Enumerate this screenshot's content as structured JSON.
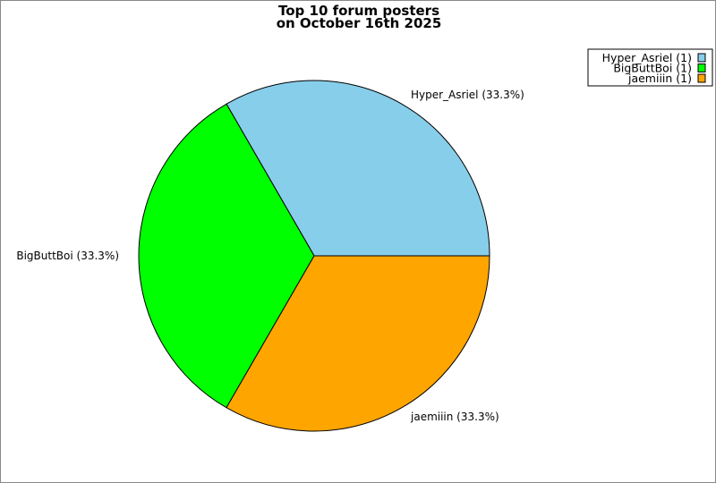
{
  "chart_data": {
    "type": "pie",
    "title": [
      "Top 10 forum posters",
      "on October 16th 2025"
    ],
    "categories": [
      "Hyper_Asriel",
      "BigButtBoi",
      "jaemiiin"
    ],
    "values": [
      1,
      1,
      1
    ],
    "percent_labels": [
      "Hyper_Asriel (33.3%)",
      "BigButtBoi (33.3%)",
      "jaemiiin (33.3%)"
    ],
    "legend_entries": [
      "Hyper_Asriel (1)",
      "BigButtBoi (1)",
      "jaemiiin (1)"
    ],
    "colors": [
      "#87ceeb",
      "#00ff00",
      "#ffa500"
    ],
    "legend_position": "top-right",
    "start_angle_deg": 0,
    "direction": "counterclockwise"
  }
}
